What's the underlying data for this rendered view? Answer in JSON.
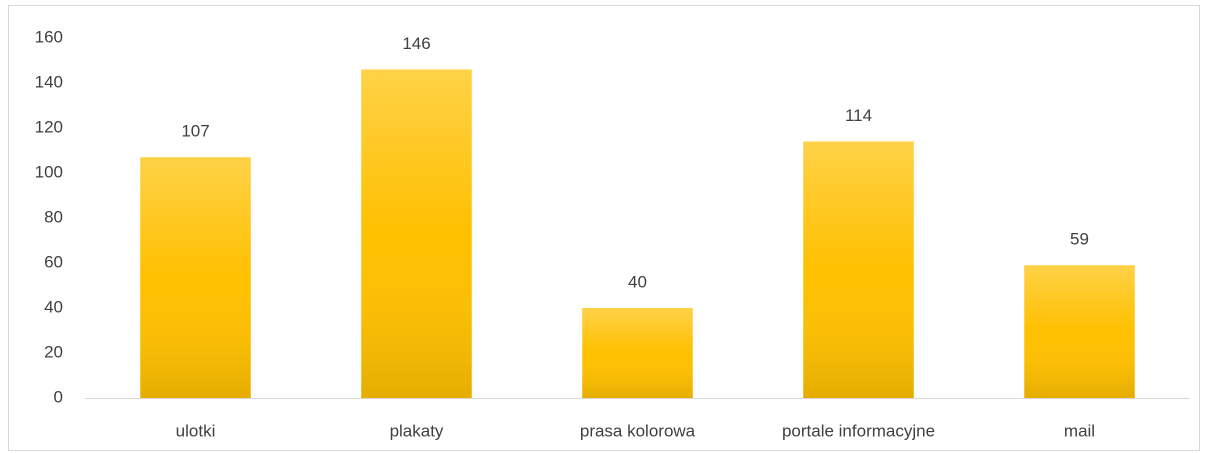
{
  "chart_data": {
    "type": "bar",
    "categories": [
      "ulotki",
      "plakaty",
      "prasa kolorowa",
      "portale informacyjne",
      "mail"
    ],
    "values": [
      107,
      146,
      40,
      114,
      59
    ],
    "color": "#ffc000",
    "ylim": [
      0,
      160
    ],
    "yticks": [
      0,
      20,
      40,
      60,
      80,
      100,
      120,
      140,
      160
    ],
    "grid": false
  }
}
